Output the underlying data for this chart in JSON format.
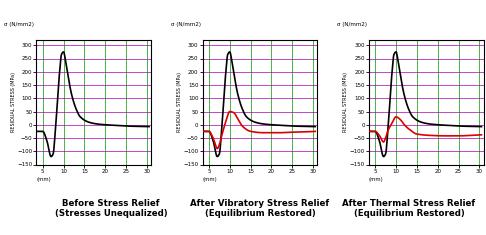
{
  "ylabel": "RESIDUAL STRESS (MPa)",
  "sigma_label": "σ (N/mm2)",
  "ylim": [
    -150,
    320
  ],
  "yticks": [
    -150,
    -100,
    -50,
    0,
    50,
    100,
    150,
    200,
    250,
    300
  ],
  "xticks": [
    5,
    10,
    15,
    20,
    25,
    30
  ],
  "xlim": [
    3.5,
    31
  ],
  "bg_color": "#ffffff",
  "plot_bg": "#ffffff",
  "black_line_color": "#000000",
  "red_line_color": "#dd0000",
  "titles": [
    "Before Stress Relief\n(Stresses Unequalized)",
    "After Vibratory Stress Relief\n(Equilibrium Restored)",
    "After Thermal Stress Relief\n(Equilibrium Restored)"
  ],
  "black_x": [
    3.5,
    5.0,
    6.0,
    7.0,
    7.5,
    8.0,
    8.5,
    9.0,
    9.5,
    10.0,
    10.5,
    11.0,
    12.0,
    13.0,
    14.0,
    16.0,
    18.0,
    20.0,
    22.0,
    25.0,
    28.0,
    30.5
  ],
  "black_y": [
    -25,
    -25,
    -60,
    -120,
    -110,
    -30,
    80,
    190,
    265,
    275,
    240,
    190,
    110,
    60,
    30,
    10,
    3,
    0,
    -2,
    -5,
    -6,
    -7
  ],
  "red_vib_x": [
    3.5,
    5.0,
    6.0,
    7.0,
    7.5,
    8.0,
    9.0,
    10.0,
    11.0,
    12.0,
    13.0,
    15.0,
    18.0,
    22.0,
    25.0,
    28.0,
    30.5
  ],
  "red_vib_y": [
    -25,
    -25,
    -50,
    -90,
    -75,
    -45,
    10,
    50,
    45,
    20,
    -5,
    -25,
    -30,
    -30,
    -28,
    -27,
    -25
  ],
  "red_therm_x": [
    3.5,
    5.0,
    6.0,
    7.0,
    7.5,
    8.0,
    9.0,
    10.0,
    11.0,
    12.0,
    13.0,
    15.0,
    18.0,
    22.0,
    25.0,
    28.0,
    30.5
  ],
  "red_therm_y": [
    -25,
    -25,
    -40,
    -65,
    -50,
    -25,
    5,
    30,
    20,
    0,
    -15,
    -35,
    -40,
    -42,
    -42,
    -40,
    -38
  ]
}
